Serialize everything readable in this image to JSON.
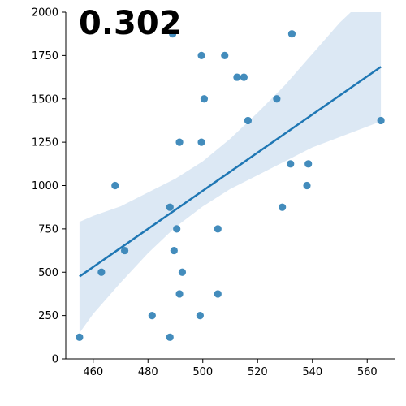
{
  "chart_data": {
    "type": "scatter",
    "annotation": "0.302",
    "xlim": [
      450,
      570
    ],
    "ylim": [
      0,
      2000
    ],
    "x_ticks": [
      460,
      480,
      500,
      520,
      540,
      560
    ],
    "y_ticks": [
      0,
      250,
      500,
      750,
      1000,
      1250,
      1500,
      1750,
      2000
    ],
    "grid": false,
    "points": [
      {
        "x": 455,
        "y": 125
      },
      {
        "x": 463,
        "y": 500
      },
      {
        "x": 468,
        "y": 1000
      },
      {
        "x": 471.5,
        "y": 625
      },
      {
        "x": 481.5,
        "y": 250
      },
      {
        "x": 488,
        "y": 125
      },
      {
        "x": 488,
        "y": 875
      },
      {
        "x": 489,
        "y": 1875
      },
      {
        "x": 489.5,
        "y": 625
      },
      {
        "x": 490.5,
        "y": 750
      },
      {
        "x": 491.5,
        "y": 375
      },
      {
        "x": 491.5,
        "y": 1250
      },
      {
        "x": 492.5,
        "y": 500
      },
      {
        "x": 499,
        "y": 250
      },
      {
        "x": 499.5,
        "y": 1250
      },
      {
        "x": 499.5,
        "y": 1750
      },
      {
        "x": 500.5,
        "y": 1500
      },
      {
        "x": 505.5,
        "y": 375
      },
      {
        "x": 505.5,
        "y": 750
      },
      {
        "x": 508,
        "y": 1750
      },
      {
        "x": 512.5,
        "y": 1625
      },
      {
        "x": 515,
        "y": 1625
      },
      {
        "x": 516.5,
        "y": 1375
      },
      {
        "x": 527,
        "y": 1500
      },
      {
        "x": 529,
        "y": 875
      },
      {
        "x": 532,
        "y": 1125
      },
      {
        "x": 532.5,
        "y": 1875
      },
      {
        "x": 538,
        "y": 1000
      },
      {
        "x": 538.5,
        "y": 1125
      },
      {
        "x": 565,
        "y": 1375
      }
    ],
    "regression": {
      "line": [
        {
          "x": 455,
          "y": 475
        },
        {
          "x": 565,
          "y": 1685
        }
      ],
      "ci_upper": [
        {
          "x": 455,
          "y": 790
        },
        {
          "x": 460,
          "y": 825
        },
        {
          "x": 470,
          "y": 880
        },
        {
          "x": 480,
          "y": 960
        },
        {
          "x": 490,
          "y": 1040
        },
        {
          "x": 500,
          "y": 1140
        },
        {
          "x": 510,
          "y": 1270
        },
        {
          "x": 520,
          "y": 1420
        },
        {
          "x": 530,
          "y": 1580
        },
        {
          "x": 540,
          "y": 1760
        },
        {
          "x": 550,
          "y": 1940
        },
        {
          "x": 554,
          "y": 2000
        },
        {
          "x": 565,
          "y": 2000
        }
      ],
      "ci_lower": [
        {
          "x": 455,
          "y": 150
        },
        {
          "x": 460,
          "y": 260
        },
        {
          "x": 470,
          "y": 440
        },
        {
          "x": 480,
          "y": 610
        },
        {
          "x": 490,
          "y": 760
        },
        {
          "x": 500,
          "y": 880
        },
        {
          "x": 510,
          "y": 980
        },
        {
          "x": 520,
          "y": 1060
        },
        {
          "x": 530,
          "y": 1140
        },
        {
          "x": 540,
          "y": 1220
        },
        {
          "x": 550,
          "y": 1280
        },
        {
          "x": 565,
          "y": 1370
        }
      ]
    },
    "colors": {
      "points": "#2f7fb5",
      "line": "#1f77b4",
      "band": "#c9dcee",
      "axis": "#000000"
    }
  }
}
